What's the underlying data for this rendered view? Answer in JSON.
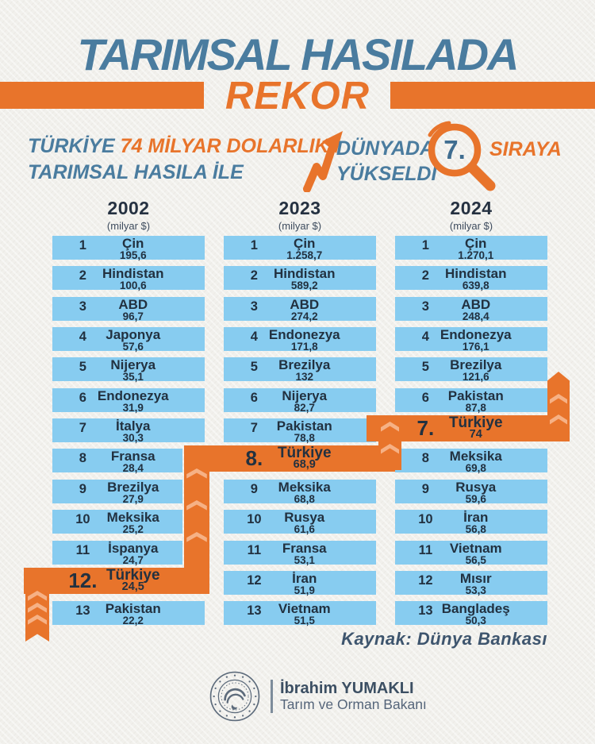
{
  "title": "TARIMSAL HASILADA",
  "banner_label": "REKOR",
  "subtitle": {
    "line1_part1": "TÜRKİYE",
    "line1_part2": " 74 MİLYAR DOLARLIK",
    "line2": "TARIMSAL HASILA İLE",
    "world_line1": "DÜNYADA",
    "world_line2": "YÜKSELDİ",
    "rank_number": "7.",
    "rank_suffix": "SIRAYA"
  },
  "chart_data": {
    "type": "table",
    "title": "TARIMSAL HASILADA REKOR",
    "unit_label": "(milyar $)",
    "highlight_country": "Türkiye",
    "columns": [
      {
        "year": "2002",
        "rows": [
          {
            "rank": "1",
            "country": "Çin",
            "value": "195,6"
          },
          {
            "rank": "2",
            "country": "Hindistan",
            "value": "100,6"
          },
          {
            "rank": "3",
            "country": "ABD",
            "value": "96,7"
          },
          {
            "rank": "4",
            "country": "Japonya",
            "value": "57,6"
          },
          {
            "rank": "5",
            "country": "Nijerya",
            "value": "35,1"
          },
          {
            "rank": "6",
            "country": "Endonezya",
            "value": "31,9"
          },
          {
            "rank": "7",
            "country": "İtalya",
            "value": "30,3"
          },
          {
            "rank": "8",
            "country": "Fransa",
            "value": "28,4"
          },
          {
            "rank": "9",
            "country": "Brezilya",
            "value": "27,9"
          },
          {
            "rank": "10",
            "country": "Meksika",
            "value": "25,2"
          },
          {
            "rank": "11",
            "country": "İspanya",
            "value": "24,7"
          },
          {
            "rank": "12.",
            "country": "Türkiye",
            "value": "24,5",
            "highlight": true
          },
          {
            "rank": "13",
            "country": "Pakistan",
            "value": "22,2"
          }
        ]
      },
      {
        "year": "2023",
        "rows": [
          {
            "rank": "1",
            "country": "Çin",
            "value": "1.258,7"
          },
          {
            "rank": "2",
            "country": "Hindistan",
            "value": "589,2"
          },
          {
            "rank": "3",
            "country": "ABD",
            "value": "274,2"
          },
          {
            "rank": "4",
            "country": "Endonezya",
            "value": "171,8"
          },
          {
            "rank": "5",
            "country": "Brezilya",
            "value": "132"
          },
          {
            "rank": "6",
            "country": "Nijerya",
            "value": "82,7"
          },
          {
            "rank": "7",
            "country": "Pakistan",
            "value": "78,8"
          },
          {
            "rank": "8.",
            "country": "Türkiye",
            "value": "68,9",
            "highlight": true
          },
          {
            "rank": "9",
            "country": "Meksika",
            "value": "68,8"
          },
          {
            "rank": "10",
            "country": "Rusya",
            "value": "61,6"
          },
          {
            "rank": "11",
            "country": "Fransa",
            "value": "53,1"
          },
          {
            "rank": "12",
            "country": "İran",
            "value": "51,9"
          },
          {
            "rank": "13",
            "country": "Vietnam",
            "value": "51,5"
          }
        ]
      },
      {
        "year": "2024",
        "rows": [
          {
            "rank": "1",
            "country": "Çin",
            "value": "1.270,1"
          },
          {
            "rank": "2",
            "country": "Hindistan",
            "value": "639,8"
          },
          {
            "rank": "3",
            "country": "ABD",
            "value": "248,4"
          },
          {
            "rank": "4",
            "country": "Endonezya",
            "value": "176,1"
          },
          {
            "rank": "5",
            "country": "Brezilya",
            "value": "121,6"
          },
          {
            "rank": "6",
            "country": "Pakistan",
            "value": "87,8"
          },
          {
            "rank": "7.",
            "country": "Türkiye",
            "value": "74",
            "highlight": true
          },
          {
            "rank": "8",
            "country": "Meksika",
            "value": "69,8"
          },
          {
            "rank": "9",
            "country": "Rusya",
            "value": "59,6"
          },
          {
            "rank": "10",
            "country": "İran",
            "value": "56,8"
          },
          {
            "rank": "11",
            "country": "Vietnam",
            "value": "56,5"
          },
          {
            "rank": "12",
            "country": "Mısır",
            "value": "53,3"
          },
          {
            "rank": "13",
            "country": "Bangladeş",
            "value": "50,3"
          }
        ]
      }
    ]
  },
  "source_label": "Kaynak: Dünya Bankası",
  "footer": {
    "minister_name": "İbrahim YUMAKLI",
    "minister_title": "Tarım ve Orman Bakanı"
  },
  "colors": {
    "orange": "#E8742B",
    "orange_light": "#F6B185",
    "sky_blue": "#87CCF0",
    "steel_blue": "#4A7C9F",
    "navy": "#223140"
  }
}
